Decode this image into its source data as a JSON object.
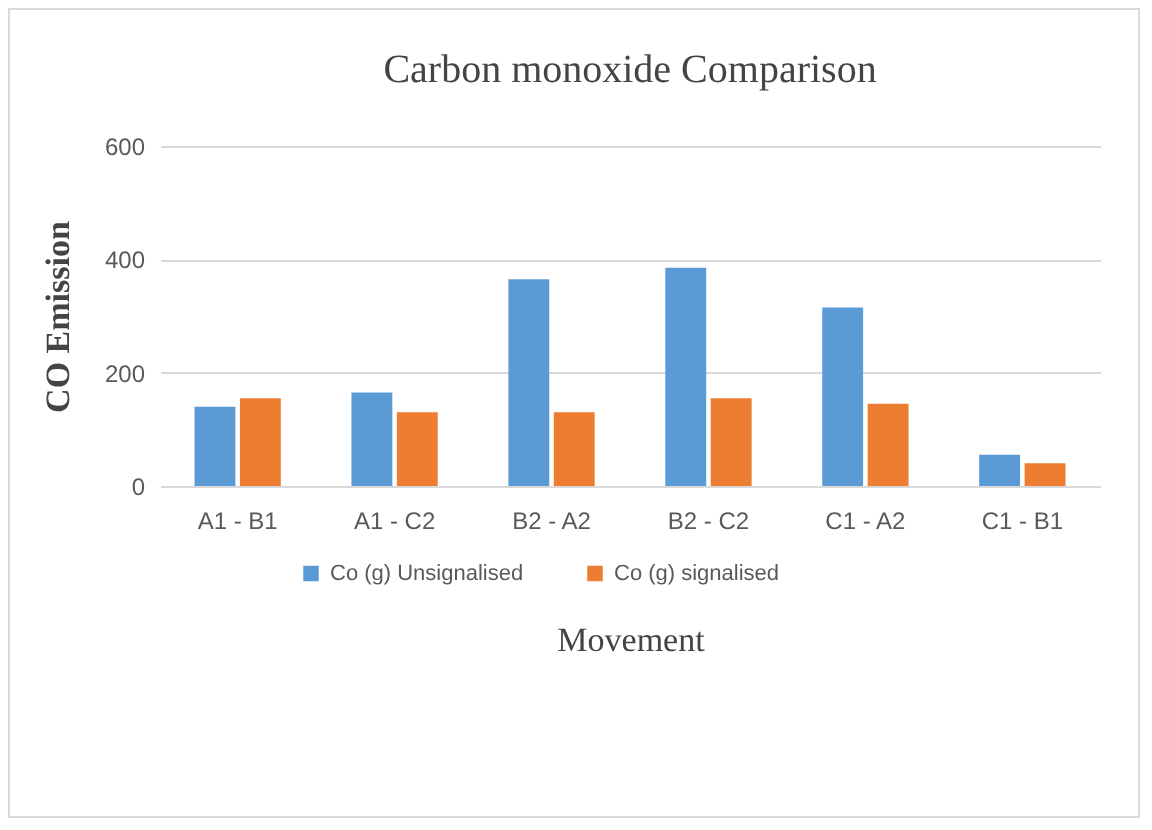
{
  "chart_data": {
    "type": "bar",
    "title": "Carbon monoxide Comparison",
    "xlabel": "Movement",
    "ylabel": "CO Emission",
    "categories": [
      "A1 - B1",
      "A1 - C2",
      "B2 - A2",
      "B2 - C2",
      "C1 - A2",
      "C1 - B1"
    ],
    "series": [
      {
        "name": "Co (g) Unsignalised",
        "color": "#5b9bd5",
        "values": [
          140,
          165,
          365,
          385,
          315,
          55
        ]
      },
      {
        "name": "Co (g) signalised",
        "color": "#ed7d31",
        "values": [
          155,
          130,
          130,
          155,
          145,
          40
        ]
      }
    ],
    "ylim": [
      0,
      600
    ],
    "yticks": [
      0,
      200,
      400,
      600
    ],
    "grid": "y",
    "legend": "bottom"
  }
}
